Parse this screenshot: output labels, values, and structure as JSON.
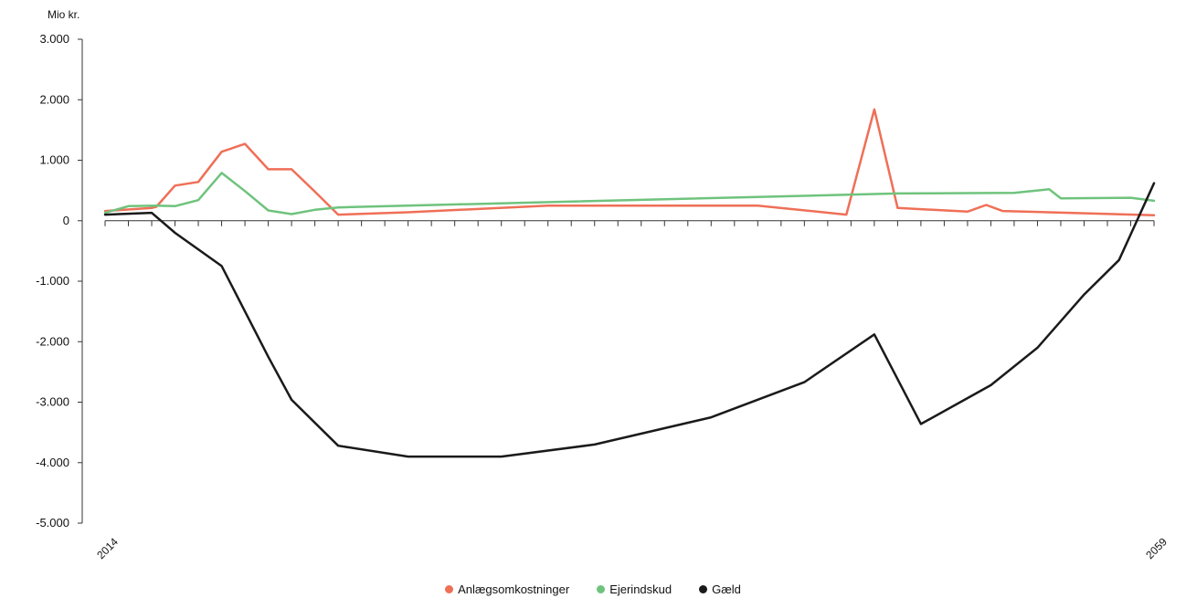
{
  "chart_data": {
    "type": "line",
    "title": "",
    "ylabel": "Mio kr.",
    "xlabel": "",
    "ylim": [
      -5000,
      3000
    ],
    "xlim": [
      2014,
      2059
    ],
    "yticks": [
      3000,
      2000,
      1000,
      0,
      -1000,
      -2000,
      -3000,
      -4000,
      -5000
    ],
    "ytick_labels": [
      "3.000",
      "2.000",
      "1.000",
      "0",
      "-1.000",
      "-2.000",
      "-3.000",
      "-4.000",
      "-5.000"
    ],
    "xtick_labels": [
      "2014",
      "2059"
    ],
    "grid": false,
    "legend_position": "bottom",
    "series": [
      {
        "name": "Anlægsomkostninger",
        "color": "#ef6f57",
        "x": [
          2014,
          2016,
          2016.2,
          2017,
          2018,
          2019,
          2020,
          2021,
          2022,
          2023,
          2024,
          2027,
          2033,
          2042,
          2045.8,
          2047,
          2048,
          2051,
          2051.8,
          2052.5,
          2059
        ],
        "y": [
          160,
          210,
          230,
          580,
          640,
          1140,
          1270,
          850,
          850,
          480,
          100,
          140,
          250,
          250,
          100,
          1840,
          210,
          150,
          260,
          160,
          90
        ]
      },
      {
        "name": "Ejerindskud",
        "color": "#6fc37d",
        "x": [
          2014,
          2015,
          2016.2,
          2017,
          2018,
          2019,
          2020,
          2021,
          2022,
          2023,
          2024,
          2025,
          2048,
          2053,
          2054.5,
          2055,
          2058,
          2059
        ],
        "y": [
          130,
          240,
          250,
          240,
          340,
          790,
          490,
          170,
          110,
          180,
          220,
          230,
          450,
          460,
          520,
          370,
          380,
          330
        ]
      },
      {
        "name": "Gæld",
        "color": "#1a1a1a",
        "x": [
          2014,
          2016,
          2017,
          2019,
          2021,
          2022,
          2024,
          2027,
          2031,
          2035,
          2040,
          2044,
          2047,
          2049,
          2052,
          2054,
          2056,
          2057.5,
          2059
        ],
        "y": [
          100,
          130,
          -200,
          -750,
          -2250,
          -2960,
          -3720,
          -3900,
          -3900,
          -3700,
          -3250,
          -2670,
          -1880,
          -3360,
          -2720,
          -2100,
          -1220,
          -650,
          620
        ]
      }
    ]
  }
}
